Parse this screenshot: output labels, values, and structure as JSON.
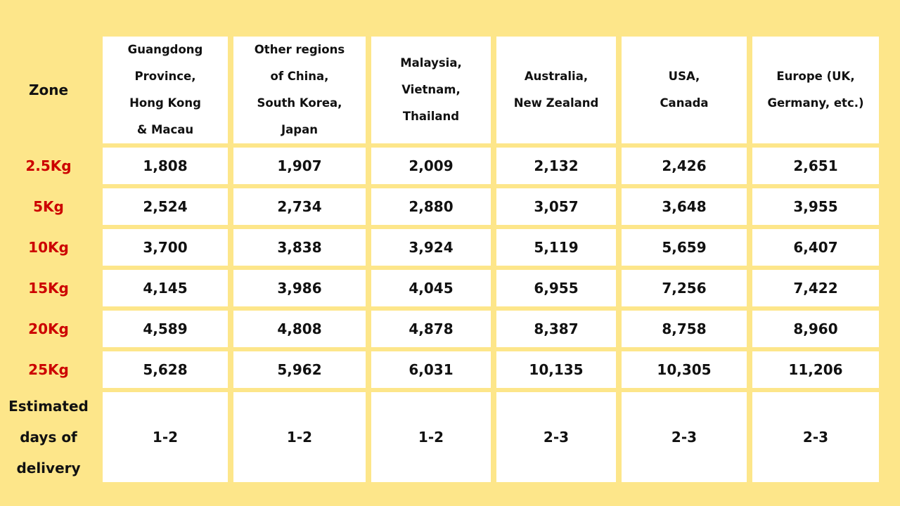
{
  "table": {
    "corner_label": "Zone",
    "columns": [
      "Guangdong\nProvince,\nHong Kong\n& Macau",
      "Other regions\nof China,\nSouth Korea,\nJapan",
      "Malaysia,\nVietnam,\nThailand",
      "Australia,\nNew Zealand",
      "USA,\nCanada",
      "Europe (UK,\nGermany, etc.)"
    ],
    "rows": [
      {
        "label": "2.5Kg",
        "values": [
          "1,808",
          "1,907",
          "2,009",
          "2,132",
          "2,426",
          "2,651"
        ]
      },
      {
        "label": "5Kg",
        "values": [
          "2,524",
          "2,734",
          "2,880",
          "3,057",
          "3,648",
          "3,955"
        ]
      },
      {
        "label": "10Kg",
        "values": [
          "3,700",
          "3,838",
          "3,924",
          "5,119",
          "5,659",
          "6,407"
        ]
      },
      {
        "label": "15Kg",
        "values": [
          "4,145",
          "3,986",
          "4,045",
          "6,955",
          "7,256",
          "7,422"
        ]
      },
      {
        "label": "20Kg",
        "values": [
          "4,589",
          "4,808",
          "4,878",
          "8,387",
          "8,758",
          "8,960"
        ]
      },
      {
        "label": "25Kg",
        "values": [
          "5,628",
          "5,962",
          "6,031",
          "10,135",
          "10,305",
          "11,206"
        ]
      }
    ],
    "days_row": {
      "label": "Estimated\ndays of\ndelivery",
      "values": [
        "1-2",
        "1-2",
        "1-2",
        "2-3",
        "2-3",
        "2-3"
      ]
    }
  },
  "colors": {
    "background": "#fde68a",
    "cell": "#ffffff",
    "weight_label": "#cc0000",
    "text": "#111111"
  }
}
